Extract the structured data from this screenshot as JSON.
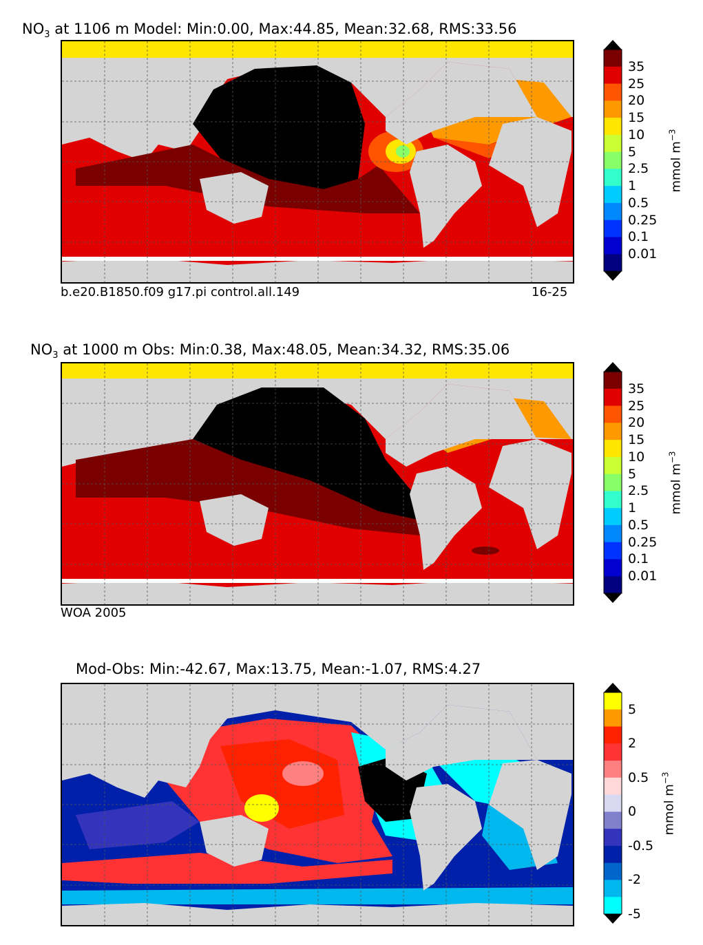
{
  "panels": [
    {
      "title_prefix": "NO",
      "title_sub": "3",
      "title_rest": " at 1106 m Model: Min:0.00, Max:44.85, Mean:32.68, RMS:33.56",
      "caption_left": "b.e20.B1850.f09 g17.pi control.all.149",
      "caption_right": "16-25",
      "cb_levels": [
        "35",
        "25",
        "20",
        "15",
        "10",
        "5",
        "2.5",
        "1",
        "0.5",
        "0.25",
        "0.1",
        "0.01"
      ],
      "unit_base": "mmol m",
      "unit_exp": "−3"
    },
    {
      "title_prefix": "NO",
      "title_sub": "3",
      "title_rest": " at 1000 m Obs: Min:0.38, Max:48.05, Mean:34.32, RMS:35.06",
      "caption_left": "WOA 2005",
      "caption_right": "",
      "cb_levels": [
        "35",
        "25",
        "20",
        "15",
        "10",
        "5",
        "2.5",
        "1",
        "0.5",
        "0.25",
        "0.1",
        "0.01"
      ],
      "unit_base": "mmol m",
      "unit_exp": "−3"
    },
    {
      "title_prefix": "",
      "title_sub": "",
      "title_rest": "Mod-Obs: Min:-42.67, Max:13.75, Mean:-1.07, RMS:4.27",
      "caption_left": "",
      "caption_right": "",
      "cb_levels": [
        "5",
        "2",
        "0.5",
        "0",
        "-0.5",
        "-2",
        "-5"
      ],
      "unit_base": "mmol m",
      "unit_exp": "−3"
    }
  ],
  "colors": {
    "land": "#d4d4d4",
    "conc_scale": [
      "#000080",
      "#0000d0",
      "#0033ff",
      "#0088ff",
      "#00ccff",
      "#33ffcc",
      "#88ff66",
      "#ccff33",
      "#ffe600",
      "#ff9900",
      "#ff5500",
      "#e00000",
      "#7a0000"
    ],
    "diff_scale": [
      "#00ffff",
      "#00b7ee",
      "#0066cc",
      "#0020aa",
      "#3333bb",
      "#8080cc",
      "#d8d8f0",
      "#ffd8d8",
      "#ff8080",
      "#ff3333",
      "#ff2200",
      "#ff9900",
      "#ffff00"
    ]
  }
}
